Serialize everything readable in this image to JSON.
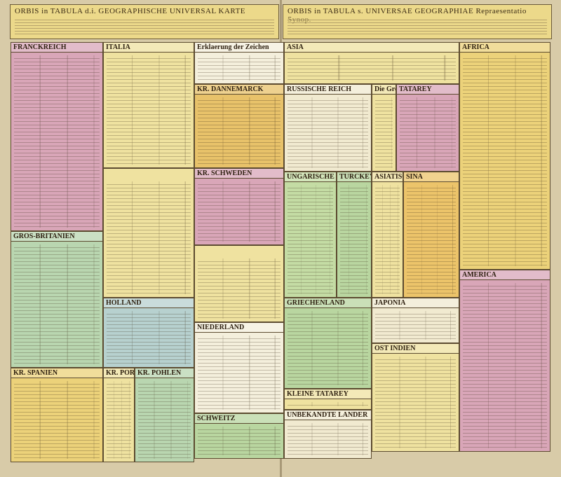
{
  "header": {
    "left_title": "ORBIS in TABULA d.i. GEOGRAPHISCHE UNIVERSAL KARTE",
    "right_title": "ORBIS in TABULA s. UNIVERSAE GEOGRAPHIAE Repraesentatio Synop."
  },
  "blocks": [
    {
      "title": "FRANCKREICH"
    },
    {
      "title": "ITALIA"
    },
    {
      "title": "Erklaerung der Zeichen"
    },
    {
      "title": "KR. DANNEMARCK"
    },
    {
      "title": "KR. SCHWEDEN"
    },
    {
      "title": "RUSSISCHE REICH"
    },
    {
      "title": "ASIA"
    },
    {
      "title": "TATAREY"
    },
    {
      "title": "AFRICA"
    },
    {
      "title": "GROS-BRITANIEN"
    },
    {
      "title": "HOLLAND"
    },
    {
      "title": "NIEDERLAND"
    },
    {
      "title": "TURCKEY"
    },
    {
      "title": "UNGARISCHE LANDER"
    },
    {
      "title": "ASIATISCHE TURCKEY"
    },
    {
      "title": "SINA"
    },
    {
      "title": "GRIECHENLAND"
    },
    {
      "title": "OST INDIEN"
    },
    {
      "title": "AMERICA"
    },
    {
      "title": "KR. SPANIEN"
    },
    {
      "title": "KR. PORTUGAL"
    },
    {
      "title": "KR. POHLEN"
    },
    {
      "title": "SCHWEITZ"
    },
    {
      "title": "KLEINE TATAREY"
    },
    {
      "title": "UNBEKANDTE LANDER"
    },
    {
      "title": "JAPONIA"
    },
    {
      "title": "Die Grosse Mogul"
    }
  ]
}
